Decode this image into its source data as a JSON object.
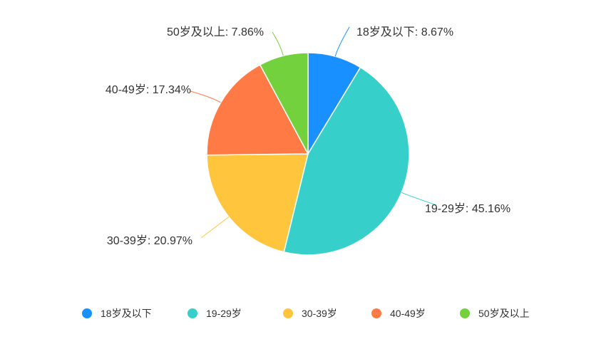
{
  "chart_data": {
    "type": "pie",
    "title": "",
    "categories": [
      "18岁及以下",
      "19-29岁",
      "30-39岁",
      "40-49岁",
      "50岁及以上"
    ],
    "values": [
      8.67,
      45.16,
      20.97,
      17.34,
      7.86
    ],
    "labels": [
      "18岁及以下: 8.67%",
      "19-29岁: 45.16%",
      "30-39岁: 20.97%",
      "40-49岁: 17.34%",
      "50岁及以上: 7.86%"
    ],
    "colors": [
      "#1890ff",
      "#36cfc9",
      "#ffc53d",
      "#ff7a45",
      "#73d13d"
    ],
    "legend": {
      "position": "bottom"
    }
  }
}
